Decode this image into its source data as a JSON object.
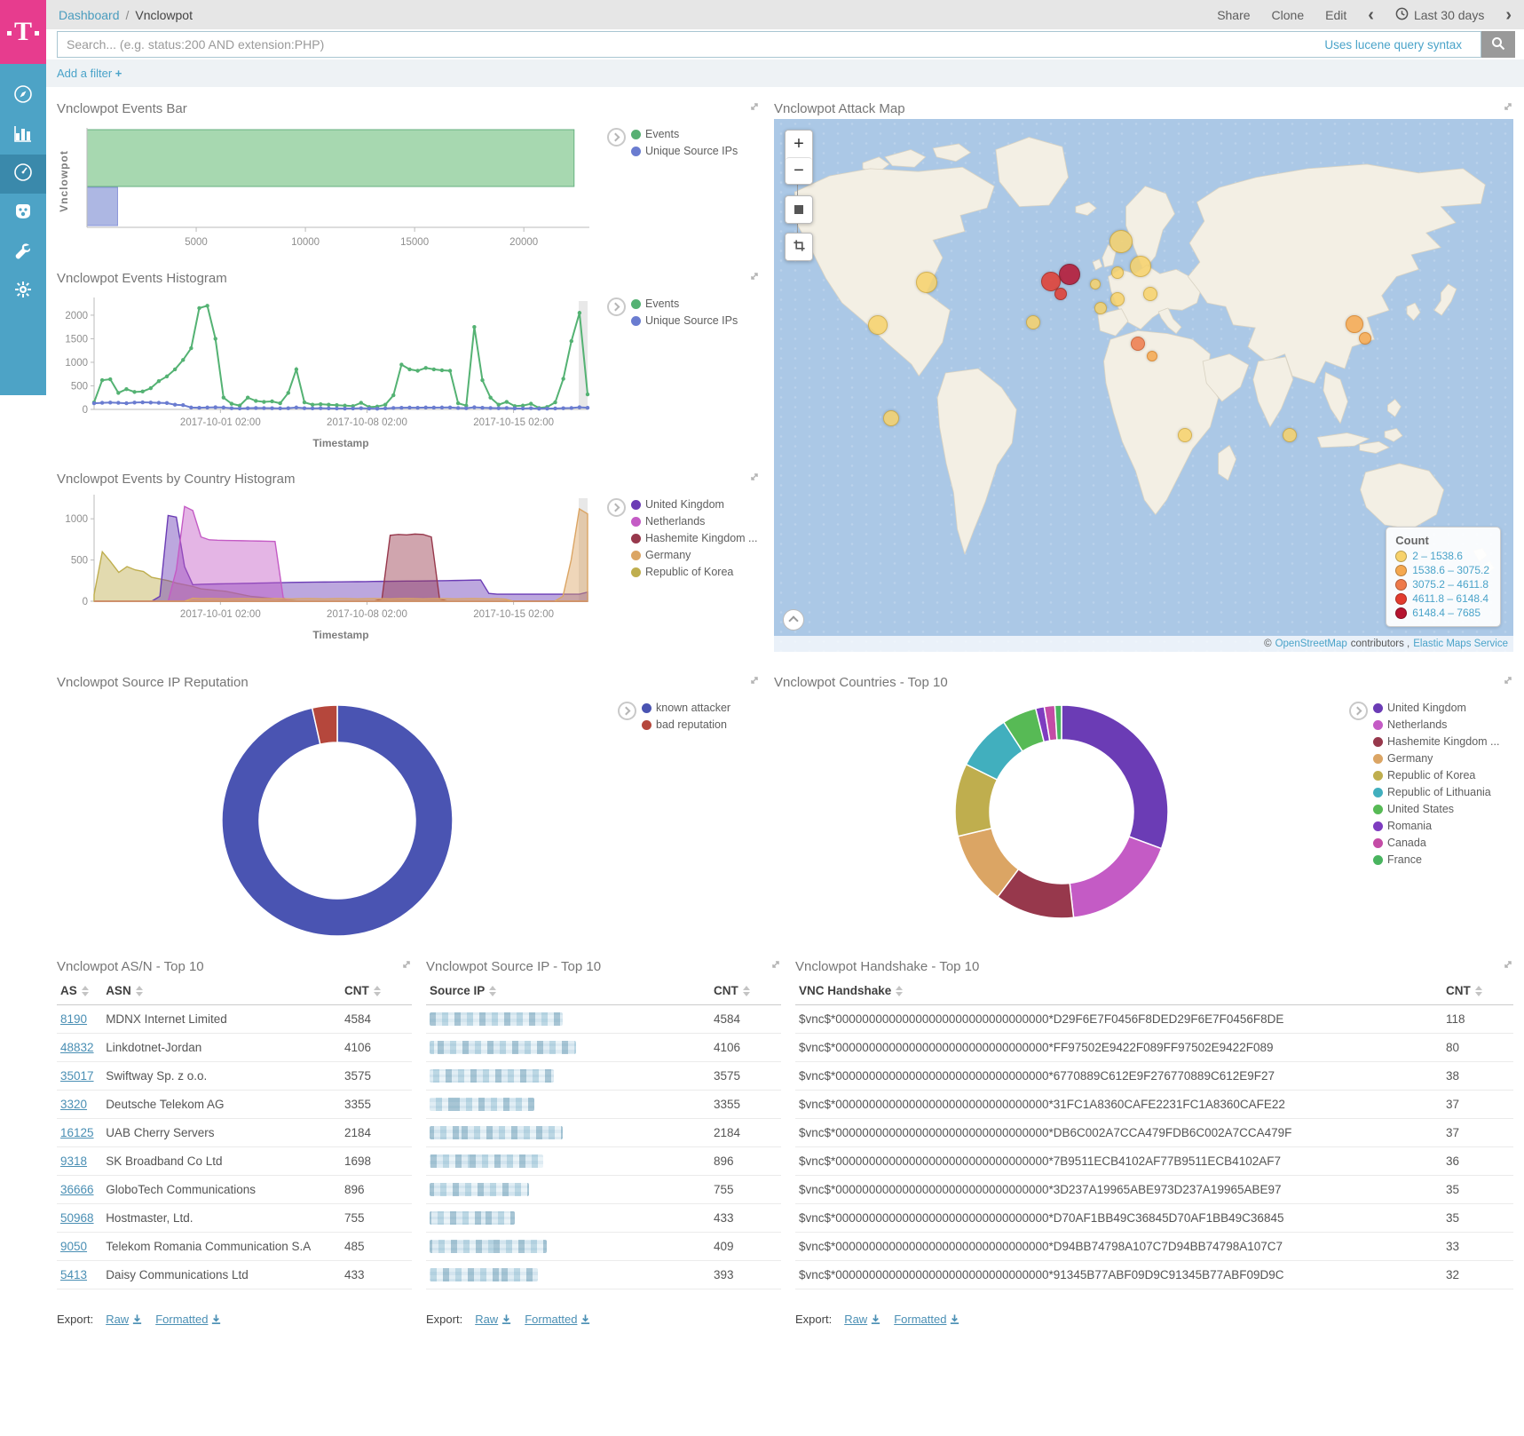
{
  "brand": {
    "logo_letter": "T"
  },
  "header": {
    "breadcrumb": {
      "parent": "Dashboard",
      "separator": "/",
      "current": "Vnclowpot"
    },
    "actions": {
      "share": "Share",
      "clone": "Clone",
      "edit": "Edit"
    },
    "time_range": "Last 30 days"
  },
  "search": {
    "placeholder": "Search... (e.g. status:200 AND extension:PHP)",
    "hint": "Uses lucene query syntax"
  },
  "filter_bar": {
    "add_filter_label": "Add a filter",
    "plus": "+"
  },
  "sidebar": {
    "items": [
      {
        "id": "discover"
      },
      {
        "id": "visualize"
      },
      {
        "id": "dashboard",
        "active": true
      },
      {
        "id": "timelion"
      },
      {
        "id": "dev-tools"
      },
      {
        "id": "management"
      }
    ]
  },
  "panels": {
    "events_bar_title": "Vnclowpot Events Bar",
    "events_histogram_title": "Vnclowpot Events Histogram",
    "country_histogram_title": "Vnclowpot Events by Country Histogram",
    "attack_map_title": "Vnclowpot Attack Map",
    "reputation_title": "Vnclowpot Source IP Reputation",
    "countries_title": "Vnclowpot Countries - Top 10",
    "asn_title": "Vnclowpot AS/N - Top 10",
    "source_ip_title": "Vnclowpot Source IP - Top 10",
    "handshake_title": "Vnclowpot Handshake - Top 10"
  },
  "map_controls": {
    "zoom_in": "+",
    "zoom_out": "−"
  },
  "map": {
    "legend_title": "Count",
    "attribution": {
      "prefix": "©",
      "osm": "OpenStreetMap",
      "middle": "contributors ,",
      "ems": "Elastic Maps Service"
    }
  },
  "chart_data": [
    {
      "id": "events_bar",
      "type": "bar",
      "orientation": "horizontal",
      "title": "Vnclowpot Events Bar",
      "category": "Vnclowpot",
      "ylabel": "Vnclowpot",
      "xlim": [
        0,
        23000
      ],
      "x_ticks": [
        5000,
        10000,
        15000,
        20000
      ],
      "series": [
        {
          "name": "Events",
          "value": 22300,
          "color": "#a7d8b0",
          "stroke": "#67b181",
          "legend_color": "#57b073"
        },
        {
          "name": "Unique Source IPs",
          "value": 1400,
          "color": "#adb7e3",
          "stroke": "#8894d8",
          "legend_color": "#6a7cd0"
        }
      ]
    },
    {
      "id": "events_histogram",
      "type": "line",
      "title": "Vnclowpot Events Histogram",
      "xlabel": "Timestamp",
      "ylim": [
        0,
        2300
      ],
      "y_ticks": [
        0,
        500,
        1000,
        1500,
        2000
      ],
      "x_tick_labels": [
        "2017-10-01 02:00",
        "2017-10-08 02:00",
        "2017-10-15 02:00"
      ],
      "x_tick_pos": [
        0.256,
        0.553,
        0.85
      ],
      "series": [
        {
          "name": "Events",
          "color": "#54b273",
          "values": [
            150,
            620,
            640,
            350,
            430,
            370,
            380,
            450,
            600,
            700,
            850,
            1050,
            1300,
            2150,
            2200,
            1500,
            250,
            120,
            80,
            250,
            180,
            160,
            170,
            130,
            350,
            850,
            150,
            100,
            110,
            100,
            90,
            80,
            70,
            140,
            50,
            60,
            100,
            300,
            950,
            850,
            820,
            880,
            850,
            830,
            820,
            130,
            80,
            1750,
            620,
            250,
            100,
            160,
            70,
            80,
            120,
            30,
            50,
            150,
            650,
            1450,
            2050,
            320
          ]
        },
        {
          "name": "Unique Source IPs",
          "color": "#6a7cd0",
          "values": [
            130,
            140,
            145,
            140,
            130,
            145,
            150,
            145,
            140,
            135,
            100,
            90,
            40,
            35,
            40,
            45,
            40,
            25,
            20,
            25,
            30,
            28,
            25,
            22,
            25,
            40,
            25,
            22,
            25,
            22,
            20,
            18,
            20,
            25,
            18,
            15,
            22,
            30,
            35,
            38,
            35,
            40,
            38,
            40,
            42,
            30,
            25,
            45,
            35,
            30,
            25,
            30,
            22,
            20,
            25,
            15,
            18,
            20,
            25,
            30,
            45,
            35
          ]
        }
      ]
    },
    {
      "id": "country_histogram",
      "type": "area",
      "title": "Vnclowpot Events by Country Histogram",
      "xlabel": "Timestamp",
      "ylim": [
        0,
        1250
      ],
      "y_ticks": [
        0,
        500,
        1000
      ],
      "x_tick_labels": [
        "2017-10-01 02:00",
        "2017-10-08 02:00",
        "2017-10-15 02:00"
      ],
      "x_tick_pos": [
        0.256,
        0.553,
        0.85
      ],
      "series": [
        {
          "name": "Republic of Korea",
          "color": "#bfae4e",
          "values": [
            80,
            600,
            480,
            350,
            420,
            380,
            360,
            290,
            270,
            250,
            220,
            200,
            180,
            150,
            140,
            130,
            120,
            100,
            80,
            60,
            50,
            40,
            30,
            20,
            10,
            0,
            0,
            0,
            0,
            0,
            0,
            0,
            0,
            0,
            0,
            0,
            0,
            0,
            0,
            0,
            0,
            0,
            0,
            0,
            0,
            0,
            0,
            0,
            0,
            0,
            0,
            0,
            0,
            0,
            0,
            0,
            0,
            0,
            0,
            0,
            0
          ]
        },
        {
          "name": "United Kingdom",
          "color": "#6b3cb5",
          "values": [
            0,
            0,
            0,
            0,
            0,
            0,
            0,
            0,
            60,
            1040,
            1020,
            420,
            200,
            205,
            208,
            210,
            212,
            214,
            216,
            218,
            220,
            222,
            224,
            226,
            228,
            230,
            231,
            232,
            233,
            234,
            235,
            236,
            237,
            238,
            240,
            241,
            242,
            243,
            244,
            245,
            246,
            247,
            248,
            250,
            252,
            254,
            256,
            258,
            95,
            85,
            85,
            85,
            85,
            85,
            85,
            85,
            85,
            85,
            85,
            85,
            110
          ]
        },
        {
          "name": "Netherlands",
          "color": "#c45bc5",
          "values": [
            0,
            0,
            0,
            0,
            0,
            0,
            0,
            0,
            0,
            0,
            380,
            1150,
            1100,
            780,
            745,
            740,
            738,
            736,
            734,
            732,
            730,
            728,
            725,
            40,
            0,
            0,
            0,
            0,
            0,
            0,
            0,
            0,
            0,
            0,
            0,
            0,
            0,
            0,
            0,
            0,
            0,
            0,
            0,
            0,
            0,
            0,
            0,
            0,
            0,
            0,
            0,
            0,
            0,
            0,
            0,
            0,
            0,
            0,
            0,
            0,
            0
          ]
        },
        {
          "name": "Hashemite Kingdom ...",
          "color": "#97384c",
          "values": [
            0,
            0,
            0,
            0,
            0,
            0,
            0,
            0,
            0,
            0,
            0,
            0,
            0,
            0,
            0,
            0,
            0,
            0,
            0,
            0,
            0,
            0,
            0,
            0,
            0,
            0,
            0,
            0,
            0,
            0,
            0,
            0,
            0,
            0,
            0,
            30,
            800,
            810,
            805,
            815,
            810,
            780,
            30,
            0,
            0,
            0,
            0,
            0,
            0,
            0,
            0,
            0,
            0,
            0,
            0,
            0,
            0,
            0,
            0,
            0,
            0
          ]
        },
        {
          "name": "Germany",
          "color": "#dba564",
          "values": [
            0,
            0,
            0,
            0,
            0,
            0,
            0,
            0,
            0,
            0,
            0,
            0,
            35,
            30,
            32,
            30,
            28,
            30,
            32,
            30,
            28,
            30,
            32,
            30,
            28,
            30,
            32,
            30,
            28,
            30,
            32,
            30,
            28,
            30,
            32,
            30,
            28,
            30,
            32,
            30,
            28,
            30,
            32,
            30,
            28,
            30,
            32,
            30,
            28,
            30,
            25,
            0,
            0,
            0,
            0,
            0,
            0,
            60,
            500,
            1120,
            1060
          ]
        }
      ],
      "legend_order": [
        "United Kingdom",
        "Netherlands",
        "Hashemite Kingdom ...",
        "Germany",
        "Republic of Korea"
      ]
    },
    {
      "id": "ip_reputation",
      "type": "pie",
      "donut": true,
      "title": "Vnclowpot Source IP Reputation",
      "slices": [
        {
          "label": "known attacker",
          "value": 96.5,
          "color": "#4a54b2"
        },
        {
          "label": "bad reputation",
          "value": 3.5,
          "color": "#b5473c"
        }
      ]
    },
    {
      "id": "countries_top10",
      "type": "pie",
      "donut": true,
      "title": "Vnclowpot Countries - Top 10",
      "slices": [
        {
          "label": "United Kingdom",
          "value": 30.5,
          "color": "#6b3cb5"
        },
        {
          "label": "Netherlands",
          "value": 17.5,
          "color": "#c45bc5"
        },
        {
          "label": "Hashemite Kingdom ...",
          "value": 12,
          "color": "#97384c"
        },
        {
          "label": "Germany",
          "value": 11,
          "color": "#dba564"
        },
        {
          "label": "Republic of Korea",
          "value": 11,
          "color": "#bfae4e"
        },
        {
          "label": "Republic of Lithuania",
          "value": 8.5,
          "color": "#41afbe"
        },
        {
          "label": "United States",
          "value": 5.2,
          "color": "#57ba55"
        },
        {
          "label": "Romania",
          "value": 1.3,
          "color": "#7e3cc0"
        },
        {
          "label": "Canada",
          "value": 1.6,
          "color": "#c44ca6"
        },
        {
          "label": "France",
          "value": 1.0,
          "color": "#49b45f"
        }
      ]
    },
    {
      "id": "attack_map",
      "type": "map-bubbles",
      "title": "Vnclowpot Attack Map",
      "legend_title": "Count",
      "levels": [
        {
          "label": "2 – 1538.6",
          "color": "#f7d26b",
          "border": "#cfa83a"
        },
        {
          "label": "1538.6 – 3075.2",
          "color": "#f5a84f",
          "border": "#d67f23"
        },
        {
          "label": "3075.2 – 4611.8",
          "color": "#ee7a4b",
          "border": "#c85425"
        },
        {
          "label": "4611.8 – 6148.4",
          "color": "#e23b2e",
          "border": "#ab1f14"
        },
        {
          "label": "6148.4 – 7685",
          "color": "#b5132f",
          "border": "#7e0c20"
        }
      ],
      "bubbles": [
        {
          "x": 20.7,
          "y": 30.7,
          "r": 11,
          "l": 0
        },
        {
          "x": 14.0,
          "y": 38.6,
          "r": 10,
          "l": 0
        },
        {
          "x": 15.8,
          "y": 56.1,
          "r": 8,
          "l": 0
        },
        {
          "x": 40.0,
          "y": 29.1,
          "r": 11,
          "l": 4
        },
        {
          "x": 37.5,
          "y": 30.5,
          "r": 10,
          "l": 3
        },
        {
          "x": 38.8,
          "y": 32.8,
          "r": 6,
          "l": 3
        },
        {
          "x": 46.9,
          "y": 23.0,
          "r": 12,
          "l": 0
        },
        {
          "x": 49.6,
          "y": 27.7,
          "r": 11,
          "l": 0
        },
        {
          "x": 46.4,
          "y": 28.8,
          "r": 6,
          "l": 0
        },
        {
          "x": 35.1,
          "y": 38.1,
          "r": 7,
          "l": 0
        },
        {
          "x": 44.2,
          "y": 35.5,
          "r": 6,
          "l": 0
        },
        {
          "x": 46.4,
          "y": 33.8,
          "r": 7,
          "l": 0
        },
        {
          "x": 50.9,
          "y": 32.9,
          "r": 7,
          "l": 0
        },
        {
          "x": 43.4,
          "y": 31.0,
          "r": 5,
          "l": 0
        },
        {
          "x": 49.2,
          "y": 42.1,
          "r": 7,
          "l": 2
        },
        {
          "x": 51.2,
          "y": 44.5,
          "r": 5,
          "l": 1
        },
        {
          "x": 78.5,
          "y": 38.5,
          "r": 9,
          "l": 1
        },
        {
          "x": 79.9,
          "y": 41.2,
          "r": 6,
          "l": 1
        },
        {
          "x": 55.6,
          "y": 59.3,
          "r": 7,
          "l": 0
        },
        {
          "x": 69.8,
          "y": 59.4,
          "r": 7,
          "l": 0
        }
      ]
    }
  ],
  "tables": {
    "asn": {
      "columns": [
        "AS",
        "ASN",
        "CNT"
      ],
      "rows": [
        [
          "8190",
          "MDNX Internet Limited",
          "4584"
        ],
        [
          "48832",
          "Linkdotnet-Jordan",
          "4106"
        ],
        [
          "35017",
          "Swiftway Sp. z o.o.",
          "3575"
        ],
        [
          "3320",
          "Deutsche Telekom AG",
          "3355"
        ],
        [
          "16125",
          "UAB Cherry Servers",
          "2184"
        ],
        [
          "9318",
          "SK Broadband Co Ltd",
          "1698"
        ],
        [
          "36666",
          "GloboTech Communications",
          "896"
        ],
        [
          "50968",
          "Hostmaster, Ltd.",
          "755"
        ],
        [
          "9050",
          "Telekom Romania Communication S.A",
          "485"
        ],
        [
          "5413",
          "Daisy Communications Ltd",
          "433"
        ]
      ]
    },
    "source_ip": {
      "columns": [
        "Source IP",
        "CNT"
      ],
      "redacted": true,
      "blur_widths": [
        150,
        165,
        140,
        118,
        150,
        128,
        112,
        96,
        132,
        122
      ],
      "rows": [
        [
          "",
          "4584"
        ],
        [
          "",
          "4106"
        ],
        [
          "",
          "3575"
        ],
        [
          "",
          "3355"
        ],
        [
          "",
          "2184"
        ],
        [
          "",
          "896"
        ],
        [
          "",
          "755"
        ],
        [
          "",
          "433"
        ],
        [
          "",
          "409"
        ],
        [
          "",
          "393"
        ]
      ]
    },
    "handshake": {
      "columns": [
        "VNC Handshake",
        "CNT"
      ],
      "rows": [
        [
          "$vnc$*00000000000000000000000000000000*D29F6E7F0456F8DED29F6E7F0456F8DE",
          "118"
        ],
        [
          "$vnc$*00000000000000000000000000000000*FF97502E9422F089FF97502E9422F089",
          "80"
        ],
        [
          "$vnc$*00000000000000000000000000000000*6770889C612E9F276770889C612E9F27",
          "38"
        ],
        [
          "$vnc$*00000000000000000000000000000000*31FC1A8360CAFE2231FC1A8360CAFE22",
          "37"
        ],
        [
          "$vnc$*00000000000000000000000000000000*DB6C002A7CCA479FDB6C002A7CCA479F",
          "37"
        ],
        [
          "$vnc$*00000000000000000000000000000000*7B9511ECB4102AF77B9511ECB4102AF7",
          "36"
        ],
        [
          "$vnc$*00000000000000000000000000000000*3D237A19965ABE973D237A19965ABE97",
          "35"
        ],
        [
          "$vnc$*00000000000000000000000000000000*D70AF1BB49C36845D70AF1BB49C36845",
          "35"
        ],
        [
          "$vnc$*00000000000000000000000000000000*D94BB74798A107C7D94BB74798A107C7",
          "33"
        ],
        [
          "$vnc$*00000000000000000000000000000000*91345B77ABF09D9C91345B77ABF09D9C",
          "32"
        ]
      ]
    }
  },
  "export": {
    "label": "Export:",
    "raw": "Raw",
    "formatted": "Formatted"
  }
}
